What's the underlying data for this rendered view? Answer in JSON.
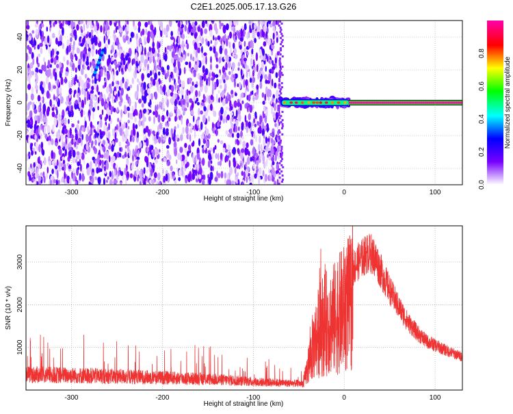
{
  "title": "C2E1.2025.005.17.13.G26",
  "colors": {
    "snr_line": "#ee3333",
    "grid": "#9a9a9a",
    "frame": "#000000"
  },
  "chart_data": [
    {
      "type": "heatmap",
      "title": "C2E1.2025.005.17.13.G26",
      "xlabel": "Height of straight line (km)",
      "ylabel": "Frequency (Hz)",
      "xlim": [
        -350,
        130
      ],
      "ylim": [
        -50,
        50
      ],
      "x_ticks": [
        -300,
        -200,
        -100,
        0,
        100
      ],
      "y_ticks": [
        -40,
        -20,
        0,
        20,
        40
      ],
      "grid": true,
      "noise_region_x": [
        -350,
        -70
      ],
      "signal_track": {
        "x_range": [
          -70,
          130
        ],
        "frequency_hz": 0,
        "strong_from_x": 5,
        "amplitude": 1.0
      },
      "features": [
        {
          "x": [
            -275,
            -265
          ],
          "frequency_hz": [
            17,
            32
          ],
          "amplitude": 0.3
        }
      ],
      "colorbar": {
        "label": "Normalized spectral amplitude",
        "range": [
          0,
          1
        ],
        "ticks": [
          0.0,
          0.2,
          0.4,
          0.6,
          0.8
        ],
        "colormap": [
          "#ffffff",
          "#7700ff",
          "#0000ff",
          "#00ffff",
          "#00ff00",
          "#ffff00",
          "#ff0000",
          "#ff00aa"
        ]
      }
    },
    {
      "type": "line",
      "xlabel": "Height of straight line (km)",
      "ylabel": "SNR (10 * v/v)",
      "xlim": [
        -350,
        130
      ],
      "ylim": [
        0,
        3850
      ],
      "x_ticks": [
        -300,
        -200,
        -100,
        0,
        100
      ],
      "y_ticks": [
        1000,
        2000,
        3000
      ],
      "grid": true,
      "color": "#ee3333",
      "envelope": {
        "x": [
          -350,
          -300,
          -250,
          -200,
          -150,
          -120,
          -100,
          -80,
          -60,
          -45,
          -40,
          -35,
          -30,
          -25,
          -20,
          -15,
          -10,
          -5,
          0,
          5,
          10,
          15,
          20,
          25,
          30,
          35,
          40,
          50,
          60,
          70,
          80,
          90,
          100,
          110,
          120,
          130
        ],
        "y": [
          450,
          430,
          400,
          360,
          320,
          280,
          240,
          220,
          200,
          190,
          700,
          1300,
          1700,
          2000,
          2100,
          2150,
          2250,
          2400,
          2550,
          2680,
          2850,
          3000,
          3100,
          3200,
          3200,
          3050,
          2800,
          2350,
          1950,
          1600,
          1350,
          1150,
          1050,
          950,
          860,
          780
        ]
      }
    }
  ]
}
